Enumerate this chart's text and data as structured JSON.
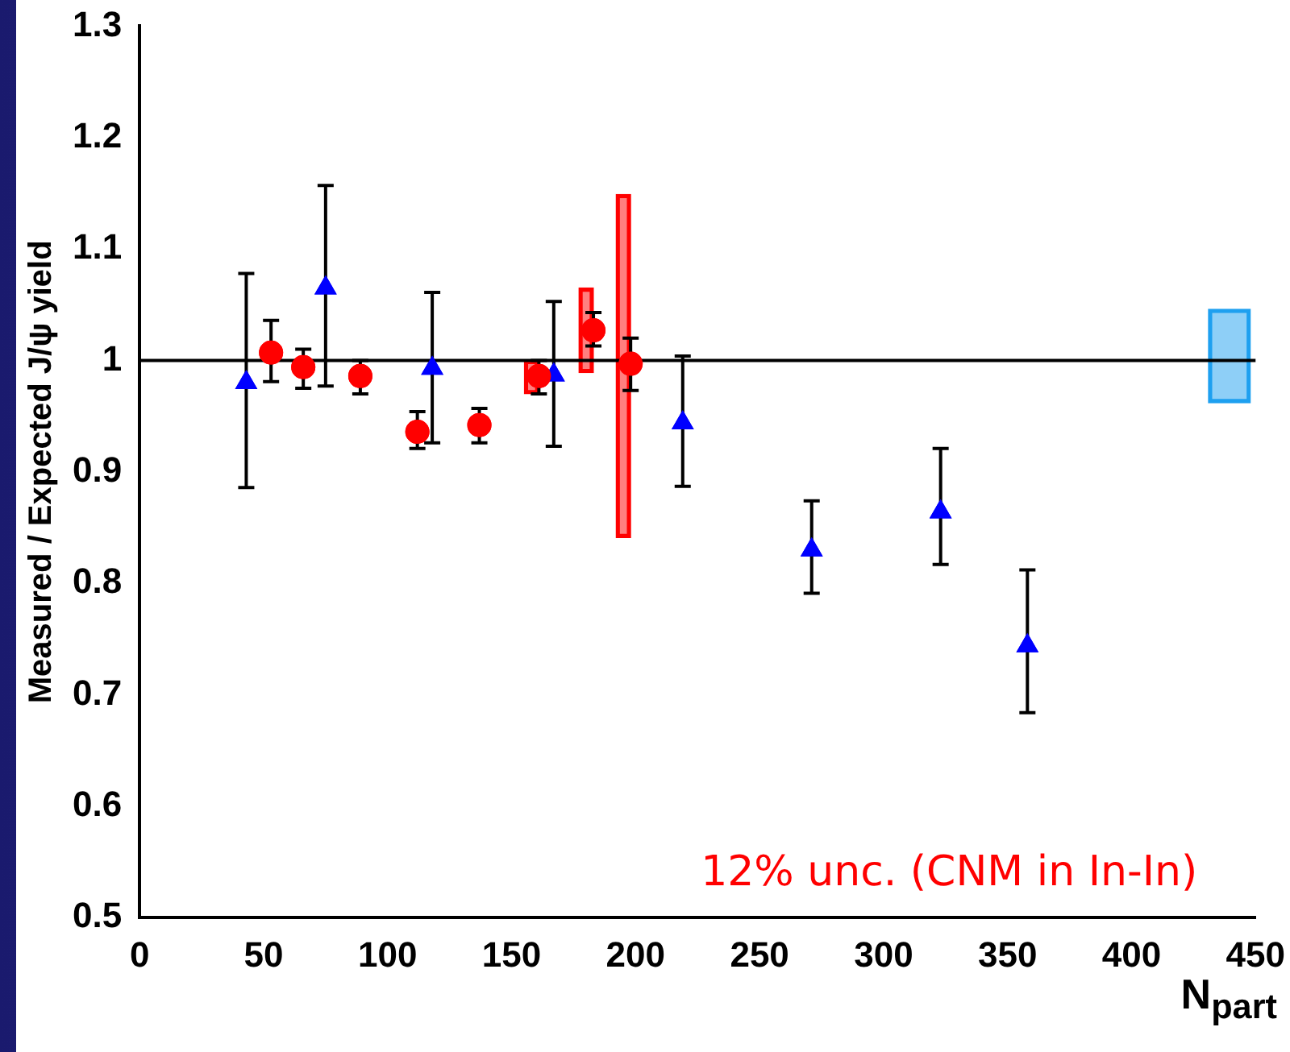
{
  "chart_data": {
    "type": "scatter",
    "ylabel": "Measured / Expected J/ψ yield",
    "xlabel": "N$_{part}$",
    "xlim": [
      0,
      450
    ],
    "xticks": [
      0,
      50,
      100,
      150,
      200,
      250,
      300,
      350,
      400,
      450
    ],
    "ylim": [
      0.5,
      1.3
    ],
    "yticks": [
      0.5,
      0.6,
      0.7,
      0.8,
      0.9,
      1,
      1.1,
      1.2,
      1.3
    ],
    "grid": false,
    "legend": false,
    "series": [
      {
        "marker": "triangle",
        "color": "#0000ff",
        "x": [
          43,
          75,
          118,
          167,
          219,
          271,
          323,
          358
        ],
        "values": [
          0.98,
          1.065,
          0.993,
          0.987,
          0.944,
          0.83,
          0.864,
          0.744
        ],
        "errors": [
          [
            0.886,
            1.078
          ],
          [
            0.977,
            1.157
          ],
          [
            0.926,
            1.061
          ],
          [
            0.923,
            1.053
          ],
          [
            0.887,
            1.004
          ],
          [
            0.791,
            0.874
          ],
          [
            0.817,
            0.921
          ],
          [
            0.684,
            0.812
          ]
        ]
      },
      {
        "marker": "circle",
        "color": "#ff0000",
        "x": [
          53,
          66,
          89,
          112,
          137,
          161,
          183,
          198
        ],
        "values": [
          1.007,
          0.994,
          0.986,
          0.936,
          0.942,
          0.986,
          1.027,
          0.997
        ],
        "errors": [
          [
            0.981,
            1.036
          ],
          [
            0.975,
            1.01
          ],
          [
            0.97,
            1.0
          ],
          [
            0.921,
            0.954
          ],
          [
            0.926,
            0.957
          ],
          [
            0.97,
            1.0
          ],
          [
            1.013,
            1.043
          ],
          [
            0.973,
            1.02
          ]
        ]
      },
      {
        "type": "bar",
        "color": "#ff0000",
        "x": [
          161,
          183,
          198
        ],
        "base": [
          0.97,
          0.989,
          0.841
        ],
        "values": [
          0.03,
          0.076,
          0.308
        ]
      },
      {
        "type": "bar",
        "color": "#1ea0f0",
        "x": [
          431
        ],
        "base": [
          0.962
        ],
        "values": [
          0.084
        ]
      }
    ],
    "ref_lines": [
      {
        "axis": "y",
        "value": 1,
        "color": "#000000"
      }
    ],
    "annotations": [
      "12% unc. (CNM in In-In)"
    ]
  }
}
